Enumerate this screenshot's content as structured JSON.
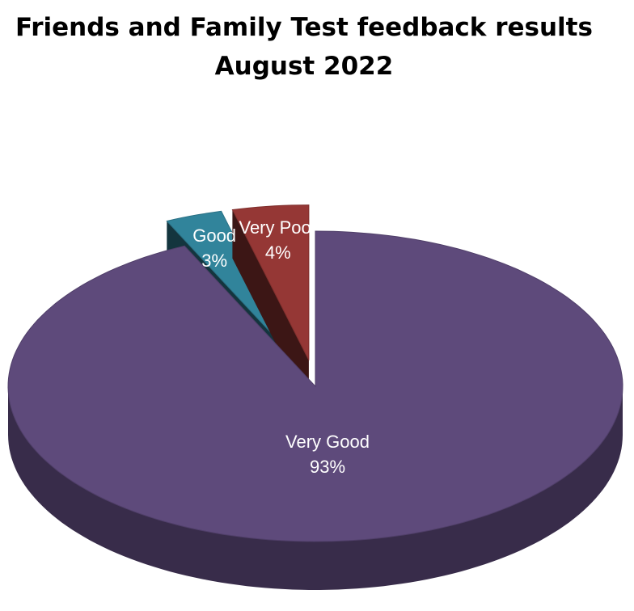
{
  "chart_data": {
    "type": "pie",
    "title": "Friends and Family Test feedback results",
    "subtitle": "August 2022",
    "categories": [
      "Very Good",
      "Good",
      "Very Poor"
    ],
    "values": [
      93,
      3,
      4
    ],
    "value_labels": [
      "93%",
      "3%",
      "4%"
    ],
    "colors": [
      "#5e4a7b",
      "#31849b",
      "#953735"
    ],
    "exploded": [
      false,
      true,
      true
    ],
    "three_d": true
  }
}
